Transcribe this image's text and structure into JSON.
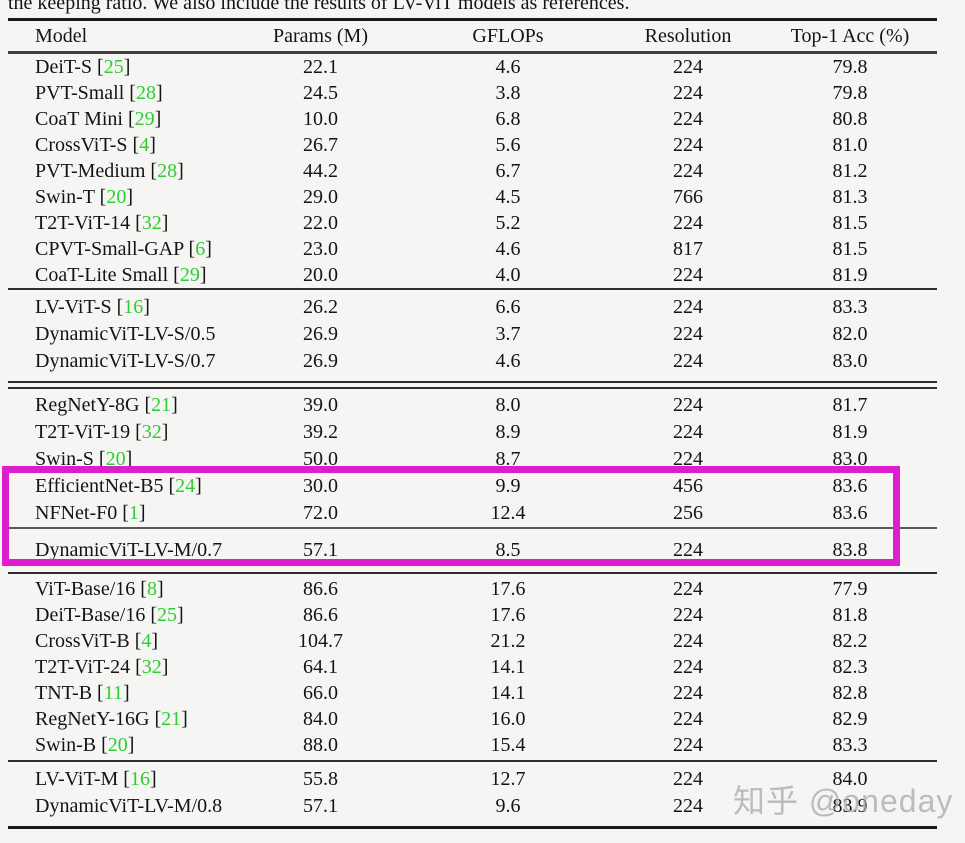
{
  "caption_fragment": "the keeping ratio. We also include the results of LV-ViT models as references.",
  "watermark_text": "知乎 @oneday",
  "colors": {
    "citation_green": "#2fce2f",
    "highlight_box_magenta": "#dc1ecf",
    "background": "#f5f5f4"
  },
  "table": {
    "columns": [
      "Model",
      "Params (M)",
      "GFLOPs",
      "Resolution",
      "Top-1 Acc (%)"
    ],
    "groups": [
      {
        "rows": [
          {
            "model": "DeiT-S",
            "cite": "25",
            "params": "22.1",
            "gflops": "4.6",
            "resolution": "224",
            "top1": "79.8"
          },
          {
            "model": "PVT-Small",
            "cite": "28",
            "params": "24.5",
            "gflops": "3.8",
            "resolution": "224",
            "top1": "79.8"
          },
          {
            "model": "CoaT Mini",
            "cite": "29",
            "params": "10.0",
            "gflops": "6.8",
            "resolution": "224",
            "top1": "80.8"
          },
          {
            "model": "CrossViT-S",
            "cite": "4",
            "params": "26.7",
            "gflops": "5.6",
            "resolution": "224",
            "top1": "81.0"
          },
          {
            "model": "PVT-Medium",
            "cite": "28",
            "params": "44.2",
            "gflops": "6.7",
            "resolution": "224",
            "top1": "81.2"
          },
          {
            "model": "Swin-T",
            "cite": "20",
            "params": "29.0",
            "gflops": "4.5",
            "resolution": "766",
            "top1": "81.3"
          },
          {
            "model": "T2T-ViT-14",
            "cite": "32",
            "params": "22.0",
            "gflops": "5.2",
            "resolution": "224",
            "top1": "81.5"
          },
          {
            "model": "CPVT-Small-GAP",
            "cite": "6",
            "params": "23.0",
            "gflops": "4.6",
            "resolution": "817",
            "top1": "81.5"
          },
          {
            "model": "CoaT-Lite Small",
            "cite": "29",
            "params": "20.0",
            "gflops": "4.0",
            "resolution": "224",
            "top1": "81.9"
          }
        ]
      },
      {
        "rows": [
          {
            "model": "LV-ViT-S",
            "cite": "16",
            "params": "26.2",
            "gflops": "6.6",
            "resolution": "224",
            "top1": "83.3"
          },
          {
            "model": "DynamicViT-LV-S/0.5",
            "cite": null,
            "params": "26.9",
            "gflops": "3.7",
            "resolution": "224",
            "top1": "82.0"
          },
          {
            "model": "DynamicViT-LV-S/0.7",
            "cite": null,
            "params": "26.9",
            "gflops": "4.6",
            "resolution": "224",
            "top1": "83.0"
          }
        ]
      },
      {
        "rows": [
          {
            "model": "RegNetY-8G",
            "cite": "21",
            "params": "39.0",
            "gflops": "8.0",
            "resolution": "224",
            "top1": "81.7"
          },
          {
            "model": "T2T-ViT-19",
            "cite": "32",
            "params": "39.2",
            "gflops": "8.9",
            "resolution": "224",
            "top1": "81.9"
          },
          {
            "model": "Swin-S",
            "cite": "20",
            "params": "50.0",
            "gflops": "8.7",
            "resolution": "224",
            "top1": "83.0"
          },
          {
            "model": "EfficientNet-B5",
            "cite": "24",
            "params": "30.0",
            "gflops": "9.9",
            "resolution": "456",
            "top1": "83.6"
          },
          {
            "model": "NFNet-F0",
            "cite": "1",
            "params": "72.0",
            "gflops": "12.4",
            "resolution": "256",
            "top1": "83.6"
          }
        ]
      },
      {
        "rows": [
          {
            "model": "DynamicViT-LV-M/0.7",
            "cite": null,
            "params": "57.1",
            "gflops": "8.5",
            "resolution": "224",
            "top1": "83.8"
          }
        ]
      },
      {
        "rows": [
          {
            "model": "ViT-Base/16",
            "cite": "8",
            "params": "86.6",
            "gflops": "17.6",
            "resolution": "224",
            "top1": "77.9"
          },
          {
            "model": "DeiT-Base/16",
            "cite": "25",
            "params": "86.6",
            "gflops": "17.6",
            "resolution": "224",
            "top1": "81.8"
          },
          {
            "model": "CrossViT-B",
            "cite": "4",
            "params": "104.7",
            "gflops": "21.2",
            "resolution": "224",
            "top1": "82.2"
          },
          {
            "model": "T2T-ViT-24",
            "cite": "32",
            "params": "64.1",
            "gflops": "14.1",
            "resolution": "224",
            "top1": "82.3"
          },
          {
            "model": "TNT-B",
            "cite": "11",
            "params": "66.0",
            "gflops": "14.1",
            "resolution": "224",
            "top1": "82.8"
          },
          {
            "model": "RegNetY-16G",
            "cite": "21",
            "params": "84.0",
            "gflops": "16.0",
            "resolution": "224",
            "top1": "82.9"
          },
          {
            "model": "Swin-B",
            "cite": "20",
            "params": "88.0",
            "gflops": "15.4",
            "resolution": "224",
            "top1": "83.3"
          }
        ]
      },
      {
        "rows": [
          {
            "model": "LV-ViT-M",
            "cite": "16",
            "params": "55.8",
            "gflops": "12.7",
            "resolution": "224",
            "top1": "84.0"
          },
          {
            "model": "DynamicViT-LV-M/0.8",
            "cite": null,
            "params": "57.1",
            "gflops": "9.6",
            "resolution": "224",
            "top1": "83.9"
          }
        ]
      }
    ]
  }
}
